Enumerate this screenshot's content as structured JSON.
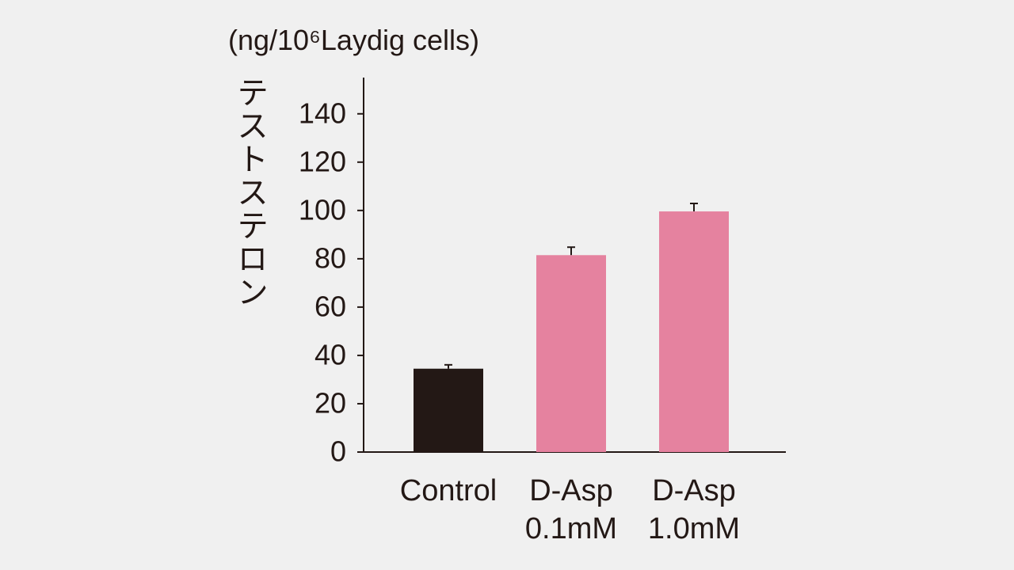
{
  "chart_data": {
    "type": "bar",
    "unit_label": "(ng/10⁶Laydig cells)",
    "ylabel": "テストステロン",
    "categories": [
      "Control",
      "D-Asp\n0.1mM",
      "D-Asp\n1.0mM"
    ],
    "values": [
      34.5,
      81.5,
      99.6
    ],
    "errors": [
      1.6,
      3.3,
      3.3
    ],
    "colors": [
      "#231815",
      "#e5829f",
      "#e5829f"
    ],
    "ylim": [
      0,
      155
    ],
    "yticks": [
      0,
      20,
      40,
      60,
      80,
      100,
      120,
      140
    ]
  }
}
